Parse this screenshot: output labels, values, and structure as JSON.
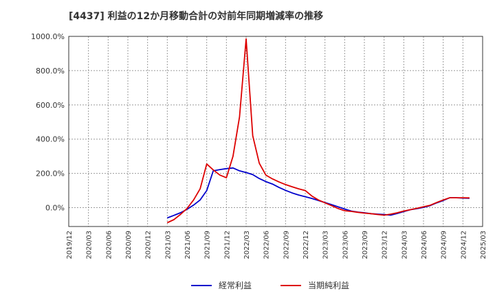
{
  "chart_data": {
    "type": "line",
    "title": "[4437]  利益の12か月移動合計の対前年同期増減率の推移",
    "xlabel": "",
    "ylabel": "",
    "ylim": [
      -110,
      1000
    ],
    "grid": true,
    "legend_position": "bottom",
    "y_ticks": [
      {
        "value": 1000,
        "label": "1000.0%"
      },
      {
        "value": 800,
        "label": "800.0%"
      },
      {
        "value": 600,
        "label": "600.0%"
      },
      {
        "value": 400,
        "label": "400.0%"
      },
      {
        "value": 200,
        "label": "200.0%"
      },
      {
        "value": 0,
        "label": "0.0%"
      }
    ],
    "x_tick_labels": [
      "2019/12",
      "2020/03",
      "2020/06",
      "2020/09",
      "2020/12",
      "2021/03",
      "2021/06",
      "2021/09",
      "2021/12",
      "2022/03",
      "2022/06",
      "2022/09",
      "2022/12",
      "2023/03",
      "2023/06",
      "2023/09",
      "2023/12",
      "2024/03",
      "2024/06",
      "2024/09",
      "2024/12",
      "2025/03"
    ],
    "x_start": "2019/12",
    "x_end": "2025/03",
    "series": [
      {
        "name": "経常利益",
        "color": "#0000cc",
        "points": [
          [
            "2021/03",
            -60
          ],
          [
            "2021/04",
            -45
          ],
          [
            "2021/05",
            -30
          ],
          [
            "2021/06",
            -10
          ],
          [
            "2021/07",
            15
          ],
          [
            "2021/08",
            45
          ],
          [
            "2021/09",
            100
          ],
          [
            "2021/10",
            215
          ],
          [
            "2021/11",
            222
          ],
          [
            "2021/12",
            228
          ],
          [
            "2022/01",
            232
          ],
          [
            "2022/02",
            215
          ],
          [
            "2022/03",
            205
          ],
          [
            "2022/04",
            193
          ],
          [
            "2022/05",
            170
          ],
          [
            "2022/06",
            152
          ],
          [
            "2022/07",
            138
          ],
          [
            "2022/08",
            118
          ],
          [
            "2022/09",
            101
          ],
          [
            "2022/10",
            86
          ],
          [
            "2022/11",
            74
          ],
          [
            "2022/12",
            64
          ],
          [
            "2023/01",
            54
          ],
          [
            "2023/02",
            42
          ],
          [
            "2023/03",
            30
          ],
          [
            "2023/04",
            18
          ],
          [
            "2023/05",
            5
          ],
          [
            "2023/06",
            -8
          ],
          [
            "2023/07",
            -20
          ],
          [
            "2023/08",
            -26
          ],
          [
            "2023/09",
            -30
          ],
          [
            "2023/10",
            -35
          ],
          [
            "2023/11",
            -38
          ],
          [
            "2023/12",
            -40
          ],
          [
            "2024/01",
            -44
          ],
          [
            "2024/02",
            -34
          ],
          [
            "2024/03",
            -23
          ],
          [
            "2024/04",
            -12
          ],
          [
            "2024/05",
            -6
          ],
          [
            "2024/06",
            2
          ],
          [
            "2024/07",
            12
          ],
          [
            "2024/08",
            28
          ],
          [
            "2024/09",
            42
          ],
          [
            "2024/10",
            58
          ],
          [
            "2024/11",
            58
          ],
          [
            "2024/12",
            56
          ],
          [
            "2025/01",
            55
          ]
        ]
      },
      {
        "name": "当期純利益",
        "color": "#dd0000",
        "points": [
          [
            "2021/03",
            -88
          ],
          [
            "2021/04",
            -70
          ],
          [
            "2021/05",
            -40
          ],
          [
            "2021/06",
            -5
          ],
          [
            "2021/07",
            45
          ],
          [
            "2021/08",
            110
          ],
          [
            "2021/09",
            255
          ],
          [
            "2021/10",
            220
          ],
          [
            "2021/11",
            190
          ],
          [
            "2021/12",
            175
          ],
          [
            "2022/01",
            300
          ],
          [
            "2022/02",
            530
          ],
          [
            "2022/03",
            985
          ],
          [
            "2022/04",
            420
          ],
          [
            "2022/05",
            260
          ],
          [
            "2022/06",
            190
          ],
          [
            "2022/07",
            168
          ],
          [
            "2022/08",
            150
          ],
          [
            "2022/09",
            135
          ],
          [
            "2022/10",
            122
          ],
          [
            "2022/11",
            110
          ],
          [
            "2022/12",
            100
          ],
          [
            "2023/01",
            68
          ],
          [
            "2023/02",
            45
          ],
          [
            "2023/03",
            28
          ],
          [
            "2023/04",
            12
          ],
          [
            "2023/05",
            -5
          ],
          [
            "2023/06",
            -18
          ],
          [
            "2023/07",
            -22
          ],
          [
            "2023/08",
            -27
          ],
          [
            "2023/09",
            -32
          ],
          [
            "2023/10",
            -35
          ],
          [
            "2023/11",
            -40
          ],
          [
            "2023/12",
            -44
          ],
          [
            "2024/01",
            -38
          ],
          [
            "2024/02",
            -30
          ],
          [
            "2024/03",
            -20
          ],
          [
            "2024/04",
            -12
          ],
          [
            "2024/05",
            -4
          ],
          [
            "2024/06",
            5
          ],
          [
            "2024/07",
            14
          ],
          [
            "2024/08",
            30
          ],
          [
            "2024/09",
            45
          ],
          [
            "2024/10",
            58
          ],
          [
            "2024/11",
            58
          ],
          [
            "2024/12",
            58
          ],
          [
            "2025/01",
            57
          ]
        ]
      }
    ]
  }
}
